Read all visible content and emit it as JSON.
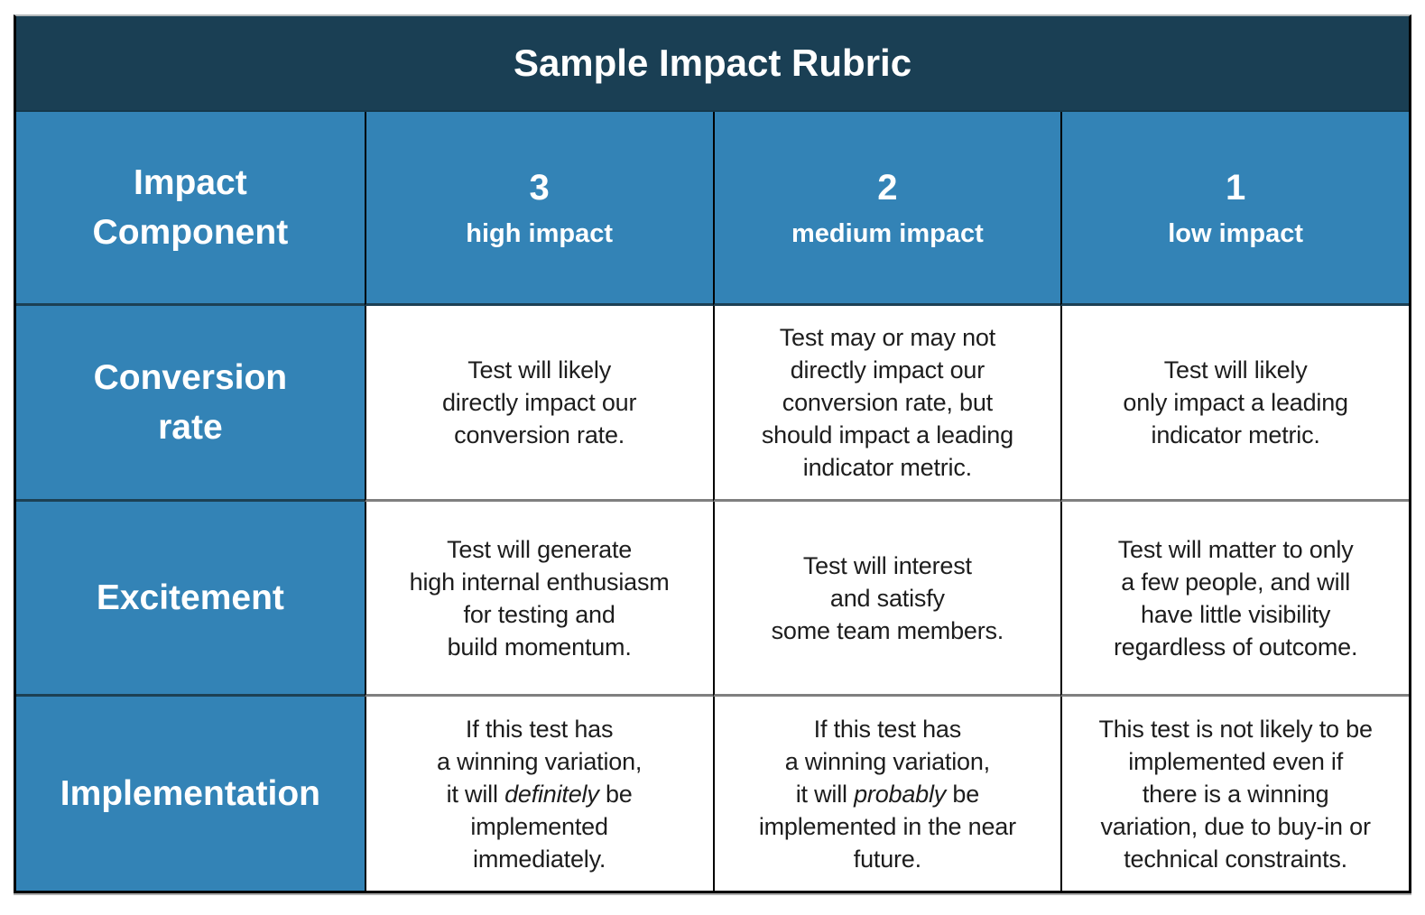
{
  "title": "Sample Impact Rubric",
  "colors": {
    "title_bg": "#1a3f54",
    "header_bg": "#3383b6",
    "header_text": "#ffffff",
    "body_bg": "#ffffff",
    "body_text": "#1d1d1d",
    "border_black": "#000000",
    "border_gray": "#7f7f7f",
    "border_navy": "#1c4054"
  },
  "table": {
    "corner_header": "Impact\nComponent",
    "columns": [
      {
        "score": "3",
        "label": "high impact"
      },
      {
        "score": "2",
        "label": "medium impact"
      },
      {
        "score": "1",
        "label": "low impact"
      }
    ],
    "rows": [
      {
        "component": "Conversion\nrate",
        "cells": [
          [
            {
              "text": "Test will likely\ndirectly impact our\nconversion rate."
            }
          ],
          [
            {
              "text": "Test may or may not\ndirectly impact our\nconversion rate, but\nshould impact a leading\nindicator metric."
            }
          ],
          [
            {
              "text": "Test will likely\nonly impact a leading\nindicator metric."
            }
          ]
        ]
      },
      {
        "component": "Excitement",
        "cells": [
          [
            {
              "text": "Test will generate\nhigh internal enthusiasm\nfor testing and\nbuild momentum."
            }
          ],
          [
            {
              "text": "Test will interest\nand satisfy\nsome team members."
            }
          ],
          [
            {
              "text": "Test will matter to only\na few people, and will\nhave little visibility\nregardless of outcome."
            }
          ]
        ]
      },
      {
        "component": "Implementation",
        "cells": [
          [
            {
              "text": "If this test has\na winning variation,\nit will "
            },
            {
              "text": "definitely",
              "italic": true
            },
            {
              "text": " be\nimplemented\nimmediately."
            }
          ],
          [
            {
              "text": "If this test has\na winning variation,\nit will "
            },
            {
              "text": "probably",
              "italic": true
            },
            {
              "text": " be\nimplemented in the near\nfuture."
            }
          ],
          [
            {
              "text": "This test is not likely to be\nimplemented even if\nthere is a winning\nvariation, due to buy-in or\ntechnical constraints."
            }
          ]
        ]
      }
    ]
  }
}
